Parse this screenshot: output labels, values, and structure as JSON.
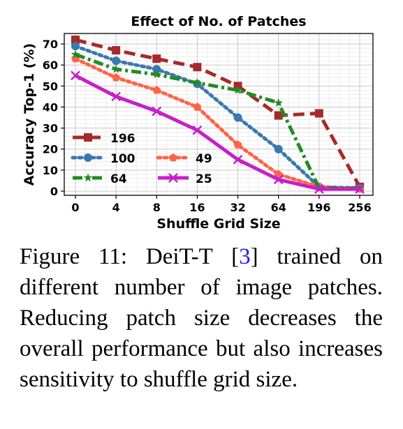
{
  "chart_data": {
    "type": "line",
    "title": "Effect of No. of Patches",
    "xlabel": "Shuffle Grid Size",
    "ylabel": "Accuracy Top-1 (%)",
    "categories": [
      "0",
      "4",
      "8",
      "16",
      "32",
      "64",
      "196",
      "256"
    ],
    "ylim": [
      -2,
      75
    ],
    "yticks": [
      0,
      10,
      20,
      30,
      40,
      50,
      60,
      70
    ],
    "grid": true,
    "legend_position": "lower-left",
    "series": [
      {
        "name": "196",
        "values": [
          72,
          67,
          63,
          59,
          50,
          36,
          37,
          2
        ],
        "color": "#a52a2a",
        "marker": "square",
        "dash": "long-dash"
      },
      {
        "name": "100",
        "values": [
          69,
          62,
          58,
          51,
          35,
          20,
          2,
          1.5
        ],
        "color": "#3a78b0",
        "marker": "circle",
        "dash": "dotted"
      },
      {
        "name": "49",
        "values": [
          63,
          54,
          48,
          40,
          22,
          8,
          2,
          1
        ],
        "color": "#ff6347",
        "marker": "pentagon",
        "dash": "dotted"
      },
      {
        "name": "64",
        "values": [
          65,
          58,
          55.5,
          51.5,
          48,
          42,
          1.5,
          1.5
        ],
        "color": "#228b22",
        "marker": "star",
        "dash": "dash-dot"
      },
      {
        "name": "25",
        "values": [
          55,
          45,
          38,
          29,
          15,
          5.5,
          1,
          1
        ],
        "color": "#c71fc7",
        "marker": "x",
        "dash": "solid"
      }
    ]
  },
  "caption": {
    "prefix": "Figure 11:  DeiT-T [",
    "ref": "3",
    "suffix": "] trained on different number of image patches. Reducing patch size decreases the overall performance but also increases sensitivity to shuffle grid size."
  }
}
